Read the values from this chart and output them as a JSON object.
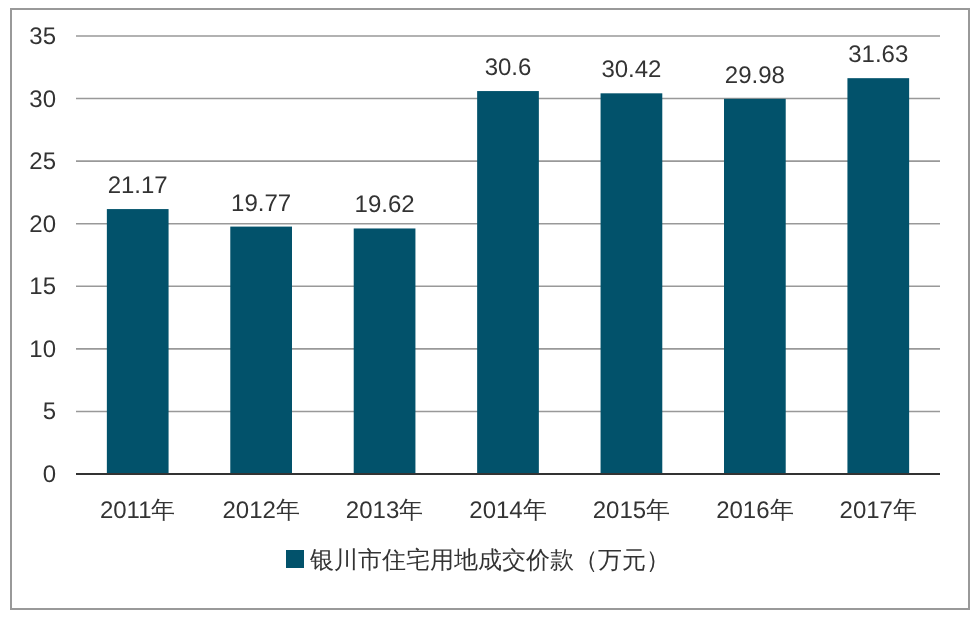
{
  "chart_data": {
    "type": "bar",
    "categories": [
      "2011年",
      "2012年",
      "2013年",
      "2014年",
      "2015年",
      "2016年",
      "2017年"
    ],
    "series": [
      {
        "name": "银川市住宅用地成交价款（万元）",
        "color": "#02526b",
        "values": [
          21.17,
          19.77,
          19.62,
          30.6,
          30.42,
          29.98,
          31.63
        ]
      }
    ],
    "ylim": [
      0,
      35
    ],
    "yticks": [
      0,
      5,
      10,
      15,
      20,
      25,
      30,
      35
    ],
    "grid": "y",
    "legend": "bottom",
    "data_labels": true
  }
}
